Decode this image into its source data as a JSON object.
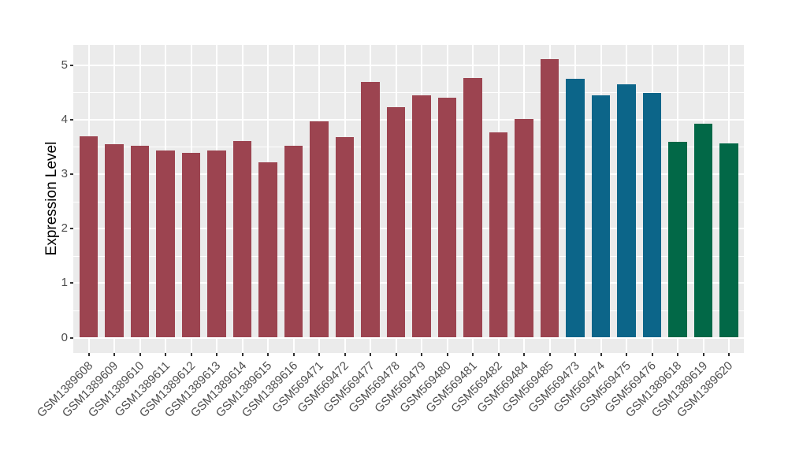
{
  "chart_data": {
    "type": "bar",
    "title": "",
    "xlabel": "",
    "ylabel": "Expression Level",
    "ylim": [
      0,
      5.37
    ],
    "yticks": [
      "0",
      "1",
      "2",
      "3",
      "4",
      "5"
    ],
    "grid": {
      "horizontal": "major and minor white lines",
      "vertical": "major white line at each category",
      "panel_background": "#EBEBEB"
    },
    "legend_position": "none",
    "categories": [
      "GSM1389608",
      "GSM1389609",
      "GSM1389610",
      "GSM1389611",
      "GSM1389612",
      "GSM1389613",
      "GSM1389614",
      "GSM1389615",
      "GSM1389616",
      "GSM569471",
      "GSM569472",
      "GSM569477",
      "GSM569478",
      "GSM569479",
      "GSM569480",
      "GSM569481",
      "GSM569482",
      "GSM569484",
      "GSM569485",
      "GSM569473",
      "GSM569474",
      "GSM569475",
      "GSM569476",
      "GSM1389618",
      "GSM1389619",
      "GSM1389620"
    ],
    "values": [
      3.69,
      3.55,
      3.52,
      3.43,
      3.39,
      3.43,
      3.61,
      3.22,
      3.52,
      3.97,
      3.68,
      4.69,
      4.22,
      4.44,
      4.4,
      4.76,
      3.77,
      4.01,
      5.11,
      4.74,
      4.44,
      4.64,
      4.48,
      3.59,
      3.93,
      3.56
    ],
    "bar_colors": [
      "#9C4450",
      "#9C4450",
      "#9C4450",
      "#9C4450",
      "#9C4450",
      "#9C4450",
      "#9C4450",
      "#9C4450",
      "#9C4450",
      "#9C4450",
      "#9C4450",
      "#9C4450",
      "#9C4450",
      "#9C4450",
      "#9C4450",
      "#9C4450",
      "#9C4450",
      "#9C4450",
      "#9C4450",
      "#0C6589",
      "#0C6589",
      "#0C6589",
      "#0C6589",
      "#026847",
      "#026847",
      "#026847"
    ],
    "color_groups": [
      {
        "color": "#9C4450",
        "from": "GSM1389608",
        "to": "GSM569485"
      },
      {
        "color": "#0C6589",
        "from": "GSM569473",
        "to": "GSM569476"
      },
      {
        "color": "#026847",
        "from": "GSM1389618",
        "to": "GSM1389620"
      }
    ]
  },
  "style": {
    "background": "#FFFFFF",
    "panel_bg": "#EBEBEB",
    "grid_color": "#FFFFFF",
    "tick_mark_color": "#333333",
    "axis_text_color": "#4D4D4D",
    "axis_title_color": "#000000"
  }
}
